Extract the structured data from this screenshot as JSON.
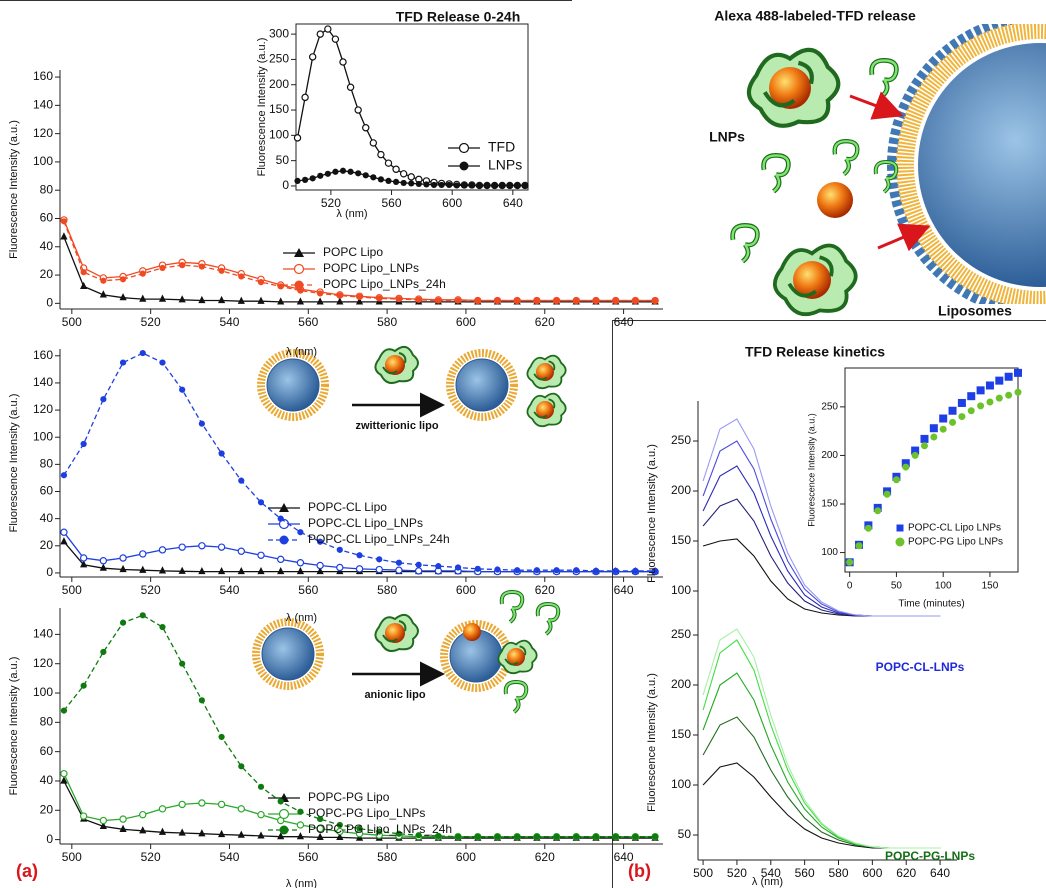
{
  "labels": {
    "panel_a": "(a)",
    "panel_b": "(b)",
    "diagram_title": "Alexa 488-labeled-TFD release",
    "lnps": "LNPs",
    "liposomes": "Liposomes",
    "zwitterionic": "zwitterionic lipo",
    "anionic": "anionic lipo"
  },
  "chart_data": [
    {
      "type": "line",
      "xlabel": "λ (nm)",
      "ylabel": "Fluorescence Intensity (a.u.)",
      "xlim": [
        497,
        650
      ],
      "ylim": [
        -4,
        165
      ],
      "xticks": [
        500,
        520,
        540,
        560,
        580,
        600,
        620,
        640
      ],
      "yticks": [
        0,
        20,
        40,
        60,
        80,
        100,
        120,
        140,
        160
      ],
      "x": [
        498,
        503,
        508,
        513,
        518,
        523,
        528,
        533,
        538,
        543,
        548,
        553,
        558,
        563,
        568,
        573,
        578,
        583,
        588,
        593,
        598,
        603,
        608,
        613,
        618,
        623,
        628,
        633,
        638,
        643,
        648
      ],
      "series": [
        {
          "name": "POPC Lipo",
          "color": "#111111",
          "marker": "triangle",
          "dash": false,
          "values": [
            47,
            12,
            6,
            4,
            3,
            3,
            2.5,
            2,
            2,
            1.5,
            1.5,
            1,
            1,
            1,
            1,
            1,
            1,
            1,
            1,
            1,
            1,
            1,
            1,
            1,
            1,
            1,
            1,
            1,
            1,
            1,
            1
          ]
        },
        {
          "name": "POPC Lipo_LNPs",
          "color": "#f04a23",
          "marker": "open-circle",
          "dash": false,
          "values": [
            59,
            25,
            18,
            19,
            23,
            27,
            29,
            28,
            25,
            21,
            17,
            13,
            10,
            8,
            6,
            5,
            4,
            3.5,
            3,
            2.5,
            2.5,
            2,
            2,
            2,
            2,
            2,
            2,
            2,
            2,
            2,
            2
          ]
        },
        {
          "name": "POPC Lipo_LNPs_24h",
          "color": "#f04a23",
          "marker": "circle",
          "dash": true,
          "values": [
            58,
            22,
            16,
            17,
            21,
            25,
            27,
            26,
            23,
            19,
            15,
            12,
            9,
            7,
            5.5,
            4.5,
            3.5,
            3,
            2.5,
            2,
            2,
            2,
            2,
            2,
            2,
            2,
            2,
            2,
            2,
            2,
            2
          ]
        }
      ]
    },
    {
      "type": "line",
      "title": "TFD Release 0-24h",
      "xlabel": "λ (nm)",
      "ylabel": "Fluorescence Intensity (a.u.)",
      "xlim": [
        497,
        650
      ],
      "ylim": [
        -8,
        320
      ],
      "xticks": [
        520,
        560,
        600,
        640
      ],
      "yticks": [
        0,
        50,
        100,
        150,
        200,
        250,
        300
      ],
      "x": [
        498,
        503,
        508,
        513,
        518,
        523,
        528,
        533,
        538,
        543,
        548,
        553,
        558,
        563,
        568,
        573,
        578,
        583,
        588,
        593,
        598,
        603,
        608,
        613,
        618,
        623,
        628,
        633,
        638,
        643,
        648
      ],
      "series": [
        {
          "name": "TFD",
          "color": "#111111",
          "marker": "open-circle",
          "dash": false,
          "values": [
            95,
            175,
            255,
            300,
            310,
            290,
            245,
            195,
            150,
            115,
            85,
            62,
            45,
            33,
            24,
            18,
            13,
            10,
            7,
            5,
            4,
            3,
            2,
            2,
            1,
            1,
            1,
            1,
            1,
            1,
            1
          ]
        },
        {
          "name": "LNPs",
          "color": "#111111",
          "marker": "circle",
          "dash": false,
          "values": [
            10,
            12,
            15,
            20,
            24,
            28,
            30,
            28,
            25,
            21,
            17,
            13,
            10,
            8,
            6,
            5,
            4,
            3,
            2,
            2,
            2,
            1,
            1,
            1,
            1,
            1,
            1,
            1,
            1,
            1,
            1
          ]
        }
      ]
    },
    {
      "type": "line",
      "xlabel": "λ (nm)",
      "ylabel": "Fluorescence Intensity (a.u.)",
      "xlim": [
        497,
        650
      ],
      "ylim": [
        -3,
        165
      ],
      "xticks": [
        500,
        520,
        540,
        560,
        580,
        600,
        620,
        640
      ],
      "yticks": [
        0,
        20,
        40,
        60,
        80,
        100,
        120,
        140,
        160
      ],
      "x": [
        498,
        503,
        508,
        513,
        518,
        523,
        528,
        533,
        538,
        543,
        548,
        553,
        558,
        563,
        568,
        573,
        578,
        583,
        588,
        593,
        598,
        603,
        608,
        613,
        618,
        623,
        628,
        633,
        638,
        643,
        648
      ],
      "series": [
        {
          "name": "POPC-CL Lipo",
          "color": "#111111",
          "marker": "triangle",
          "dash": false,
          "values": [
            23,
            6,
            3.5,
            2.5,
            2,
            1.5,
            1.2,
            1,
            1,
            1,
            1,
            1,
            1,
            1,
            1,
            1,
            1,
            1,
            1,
            1,
            1,
            1,
            1,
            1,
            1,
            1,
            1,
            1,
            1,
            1,
            1
          ]
        },
        {
          "name": "POPC-CL Lipo_LNPs",
          "color": "#1e3fe0",
          "marker": "open-circle",
          "dash": false,
          "values": [
            30,
            11,
            9,
            11,
            14,
            17,
            19,
            20,
            19,
            16,
            13,
            10,
            7.5,
            5.5,
            4,
            3,
            2.5,
            2,
            1.5,
            1.5,
            1.5,
            1,
            1,
            1,
            1,
            1,
            1,
            1,
            1,
            1,
            1
          ]
        },
        {
          "name": "POPC-CL Lipo_LNPs_24h",
          "color": "#1e3fe0",
          "marker": "circle",
          "dash": true,
          "values": [
            72,
            95,
            128,
            155,
            162,
            155,
            135,
            110,
            88,
            68,
            52,
            40,
            30,
            23,
            17,
            13,
            10,
            7.5,
            6,
            5,
            4,
            3,
            2.5,
            2,
            2,
            2,
            2,
            1.5,
            1.5,
            1.5,
            1.5
          ]
        }
      ]
    },
    {
      "type": "line",
      "xlabel": "λ (nm)",
      "ylabel": "Fluorescence Intensity (a.u.)",
      "xlim": [
        497,
        650
      ],
      "ylim": [
        -3,
        158
      ],
      "xticks": [
        500,
        520,
        540,
        560,
        580,
        600,
        620,
        640
      ],
      "yticks": [
        0,
        20,
        40,
        60,
        80,
        100,
        120,
        140
      ],
      "x": [
        498,
        503,
        508,
        513,
        518,
        523,
        528,
        533,
        538,
        543,
        548,
        553,
        558,
        563,
        568,
        573,
        578,
        583,
        588,
        593,
        598,
        603,
        608,
        613,
        618,
        623,
        628,
        633,
        638,
        643,
        648
      ],
      "series": [
        {
          "name": "POPC-PG Lipo",
          "color": "#111111",
          "marker": "triangle",
          "dash": false,
          "values": [
            40,
            14,
            9,
            7,
            6,
            5,
            4.5,
            4,
            3.5,
            3,
            2.5,
            2,
            2,
            1.5,
            1.5,
            1,
            1,
            1,
            1,
            1,
            1,
            1,
            1,
            1,
            1,
            1,
            1,
            1,
            1,
            1,
            1
          ]
        },
        {
          "name": "POPC-PG Lipo_LNPs",
          "color": "#2aa82a",
          "marker": "open-circle",
          "dash": false,
          "values": [
            45,
            16,
            13,
            14,
            17,
            21,
            24,
            25,
            24,
            21,
            17,
            13,
            10,
            7.5,
            5.5,
            4,
            3,
            2.5,
            2,
            2,
            2,
            2,
            2,
            2,
            2,
            2,
            2,
            2,
            2,
            2,
            2
          ]
        },
        {
          "name": "POPC-PG Lipo_LNPs_24h",
          "color": "#0f7a0f",
          "marker": "circle",
          "dash": true,
          "values": [
            88,
            105,
            128,
            148,
            153,
            145,
            120,
            95,
            70,
            50,
            36,
            26,
            19,
            14,
            10,
            7.5,
            5.5,
            4,
            3,
            2.5,
            2,
            2,
            2,
            2,
            2,
            2,
            2,
            2,
            2,
            2,
            2
          ]
        }
      ]
    },
    {
      "type": "line",
      "title": "TFD Release kinetics",
      "ylabel": "Fluorescence Intensity (a.u.)",
      "annotation": "POPC-CL-LNPs",
      "xlim": [
        497,
        650
      ],
      "ylim": [
        65,
        290
      ],
      "yticks": [
        100,
        150,
        200,
        250
      ],
      "x": [
        500,
        510,
        520,
        530,
        540,
        550,
        560,
        570,
        580,
        590,
        600,
        610,
        620,
        630,
        640
      ],
      "series": [
        {
          "color": "#111111",
          "marker": "none",
          "dash": false,
          "values": [
            145,
            150,
            152,
            135,
            110,
            92,
            82,
            78,
            76,
            75,
            75,
            75,
            75,
            75,
            75
          ]
        },
        {
          "color": "#22227a",
          "marker": "none",
          "dash": false,
          "values": [
            165,
            185,
            192,
            170,
            135,
            108,
            90,
            81,
            77,
            75,
            75,
            75,
            75,
            75,
            75
          ]
        },
        {
          "color": "#2a2ab8",
          "marker": "none",
          "dash": false,
          "values": [
            180,
            215,
            225,
            198,
            155,
            120,
            96,
            84,
            78,
            76,
            75,
            75,
            75,
            75,
            75
          ]
        },
        {
          "color": "#4a4ae0",
          "marker": "none",
          "dash": false,
          "values": [
            195,
            240,
            250,
            222,
            172,
            130,
            102,
            87,
            79,
            76,
            75,
            75,
            75,
            75,
            75
          ]
        },
        {
          "color": "#9a9af2",
          "marker": "none",
          "dash": false,
          "values": [
            210,
            262,
            272,
            242,
            185,
            138,
            106,
            89,
            80,
            76,
            75,
            75,
            75,
            75,
            75
          ]
        }
      ]
    },
    {
      "type": "line",
      "xlabel": "λ (nm)",
      "ylabel": "Fluorescence Intensity (a.u.)",
      "annotation": "POPC-PG-LNPs",
      "xlim": [
        497,
        650
      ],
      "ylim": [
        25,
        260
      ],
      "xticks": [
        500,
        520,
        540,
        560,
        580,
        600,
        620,
        640
      ],
      "yticks": [
        50,
        100,
        150,
        200,
        250
      ],
      "x": [
        500,
        510,
        520,
        530,
        540,
        550,
        560,
        570,
        580,
        590,
        600,
        610,
        620,
        630,
        640
      ],
      "series": [
        {
          "color": "#111111",
          "marker": "none",
          "dash": false,
          "values": [
            100,
            118,
            122,
            108,
            88,
            70,
            56,
            47,
            42,
            39,
            37,
            37,
            37,
            37,
            37
          ]
        },
        {
          "color": "#1f6a1f",
          "marker": "none",
          "dash": false,
          "values": [
            130,
            160,
            168,
            148,
            115,
            88,
            67,
            53,
            45,
            40,
            38,
            37,
            37,
            37,
            37
          ]
        },
        {
          "color": "#22aa22",
          "marker": "none",
          "dash": false,
          "values": [
            155,
            200,
            212,
            185,
            140,
            103,
            76,
            58,
            47,
            41,
            38,
            37,
            37,
            37,
            37
          ]
        },
        {
          "color": "#44dd44",
          "marker": "none",
          "dash": false,
          "values": [
            175,
            232,
            245,
            215,
            160,
            115,
            82,
            61,
            48,
            41,
            38,
            37,
            37,
            37,
            37
          ]
        },
        {
          "color": "#a6f0a6",
          "marker": "none",
          "dash": false,
          "values": [
            190,
            245,
            256,
            228,
            170,
            120,
            85,
            62,
            49,
            42,
            38,
            37,
            37,
            37,
            37
          ]
        }
      ]
    },
    {
      "type": "scatter",
      "xlabel": "Time (minutes)",
      "ylabel": "Fluorescence Intensity (a.u.)",
      "xlim": [
        -5,
        180
      ],
      "ylim": [
        80,
        290
      ],
      "xticks": [
        0,
        50,
        100,
        150
      ],
      "yticks": [
        100,
        150,
        200,
        250
      ],
      "x": [
        0,
        10,
        20,
        30,
        40,
        50,
        60,
        70,
        80,
        90,
        100,
        110,
        120,
        130,
        140,
        150,
        160,
        170,
        180
      ],
      "series": [
        {
          "name": "POPC-CL Lipo LNPs",
          "color": "#1f3fe6",
          "marker": "square",
          "dash": false,
          "values": [
            90,
            108,
            128,
            146,
            163,
            178,
            192,
            205,
            217,
            228,
            238,
            246,
            254,
            261,
            267,
            272,
            277,
            281,
            285
          ]
        },
        {
          "name": "POPC-PG Lipo LNPs",
          "color": "#6cc22a",
          "marker": "circle",
          "dash": false,
          "values": [
            90,
            107,
            125,
            143,
            160,
            175,
            188,
            200,
            210,
            219,
            227,
            234,
            240,
            246,
            251,
            255,
            259,
            262,
            265
          ]
        }
      ]
    }
  ]
}
